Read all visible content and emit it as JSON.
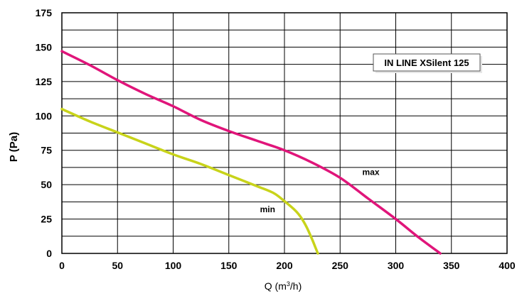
{
  "chart_data": {
    "type": "line",
    "xlabel": "Q (m3/h)",
    "xlabel_main": "Q (m",
    "xlabel_sup": "3",
    "xlabel_tail": "/h)",
    "ylabel": "P (Pa)",
    "xlim": [
      0,
      400
    ],
    "ylim": [
      0,
      175
    ],
    "xticks": [
      0,
      50,
      100,
      150,
      200,
      250,
      300,
      350,
      400
    ],
    "yticks": [
      0,
      25,
      50,
      75,
      100,
      125,
      150,
      175
    ],
    "grid": true,
    "legend_box": "IN LINE XSilent 125",
    "series": [
      {
        "name": "max",
        "color": "#e0157a",
        "x": [
          0,
          25,
          50,
          75,
          100,
          125,
          150,
          175,
          200,
          225,
          250,
          275,
          300,
          320,
          340
        ],
        "y": [
          147,
          137,
          126,
          116,
          107,
          97,
          89,
          82,
          75,
          66,
          55,
          40,
          25,
          12,
          0
        ]
      },
      {
        "name": "min",
        "color": "#c8d31a",
        "x": [
          0,
          25,
          50,
          75,
          100,
          125,
          150,
          175,
          190,
          200,
          210,
          215,
          220,
          225,
          228,
          230
        ],
        "y": [
          105,
          96,
          88,
          80,
          72,
          65,
          57,
          49,
          44,
          38,
          31,
          26,
          19,
          10,
          4,
          0
        ]
      }
    ],
    "series_labels": [
      {
        "text": "max",
        "x": 270,
        "y": 57
      },
      {
        "text": "min",
        "x": 178,
        "y": 30
      }
    ]
  }
}
